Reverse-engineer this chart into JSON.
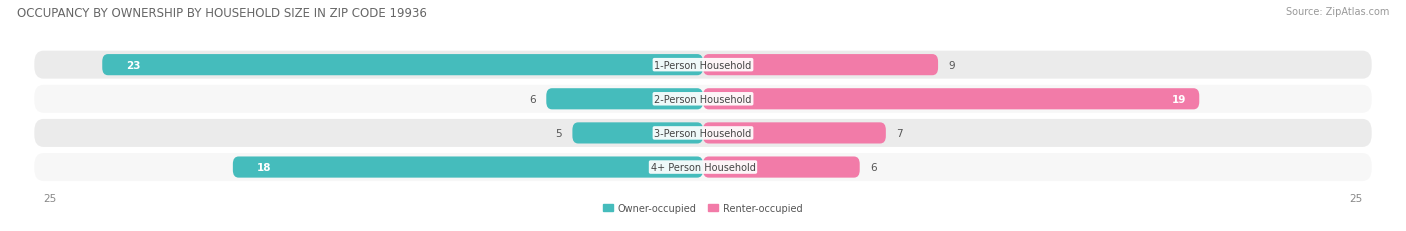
{
  "title": "OCCUPANCY BY OWNERSHIP BY HOUSEHOLD SIZE IN ZIP CODE 19936",
  "source": "Source: ZipAtlas.com",
  "categories": [
    "1-Person Household",
    "2-Person Household",
    "3-Person Household",
    "4+ Person Household"
  ],
  "owner_values": [
    23,
    6,
    5,
    18
  ],
  "renter_values": [
    9,
    19,
    7,
    6
  ],
  "owner_color": "#45BCBC",
  "renter_color": "#F27BA8",
  "owner_color_light": "#8ED8D8",
  "renter_color_light": "#F7B8CF",
  "row_bg_odd": "#EBEBEB",
  "row_bg_even": "#F7F7F7",
  "axis_max": 25,
  "legend_owner": "Owner-occupied",
  "legend_renter": "Renter-occupied",
  "title_fontsize": 8.5,
  "label_fontsize": 7.0,
  "value_fontsize": 7.5,
  "axis_fontsize": 7.5,
  "source_fontsize": 7.0
}
